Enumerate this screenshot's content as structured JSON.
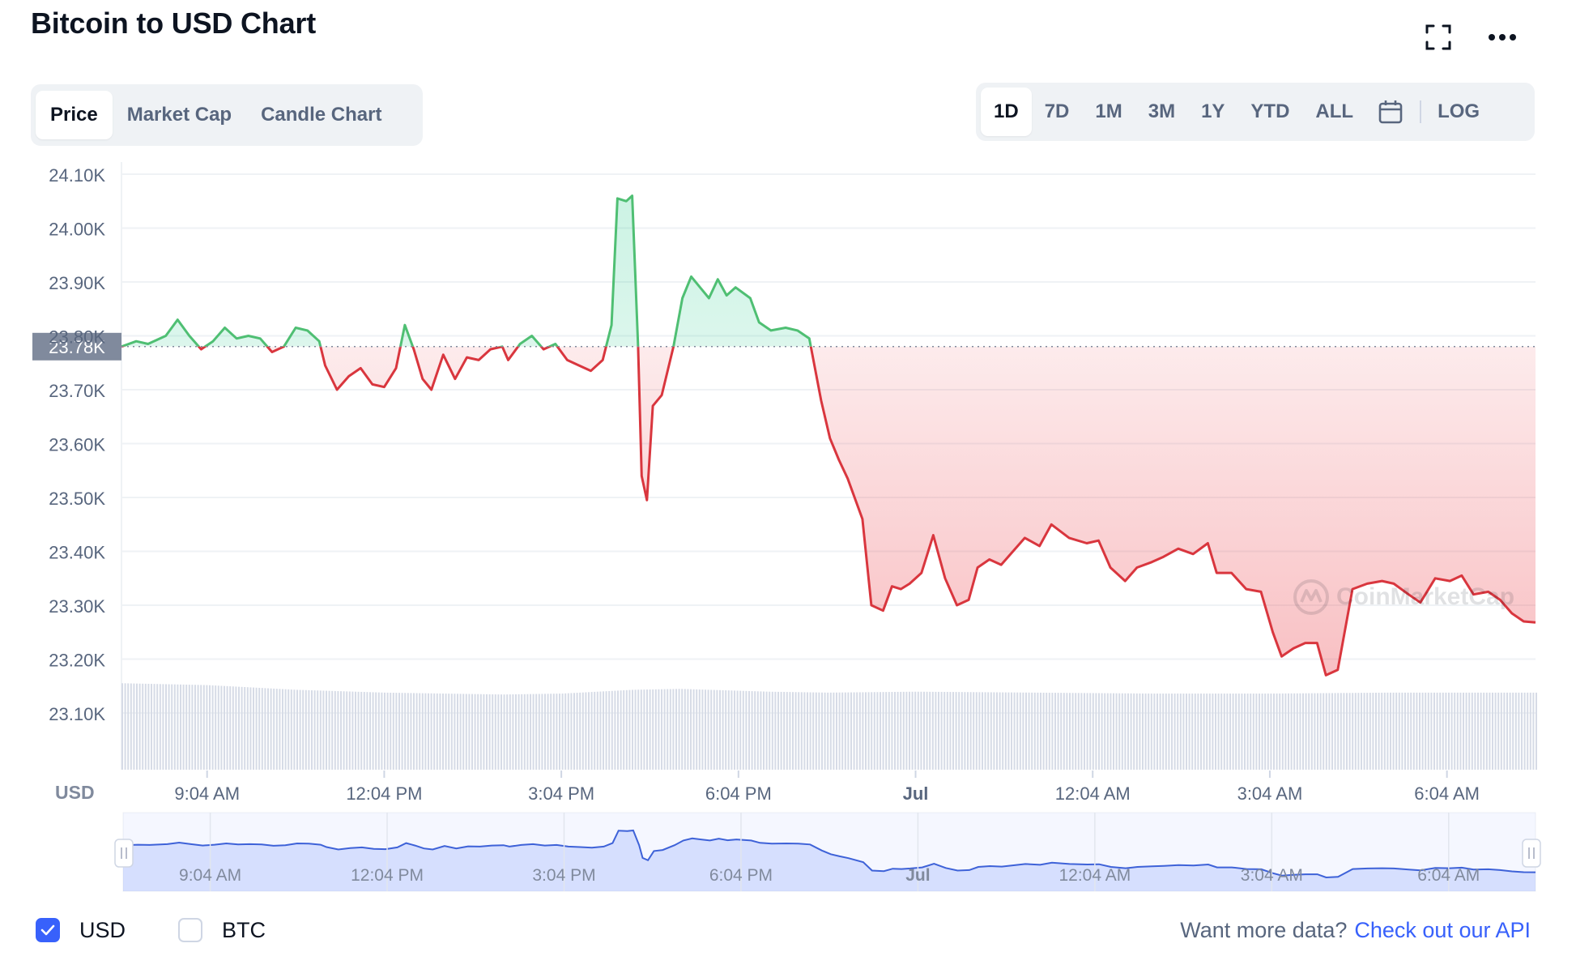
{
  "header": {
    "title": "Bitcoin to USD Chart",
    "fullscreen_icon": "fullscreen-icon",
    "more_icon": "more-horizontal-icon"
  },
  "view_tabs": [
    {
      "label": "Price",
      "active": true
    },
    {
      "label": "Market Cap",
      "active": false
    },
    {
      "label": "Candle Chart",
      "active": false
    }
  ],
  "range_tabs": [
    {
      "label": "1D",
      "active": true
    },
    {
      "label": "7D",
      "active": false
    },
    {
      "label": "1M",
      "active": false
    },
    {
      "label": "3M",
      "active": false
    },
    {
      "label": "1Y",
      "active": false
    },
    {
      "label": "YTD",
      "active": false
    },
    {
      "label": "ALL",
      "active": false
    }
  ],
  "calendar_icon": "calendar-icon",
  "log_label": "LOG",
  "colors": {
    "up": "#16c784",
    "up_line": "#4fbf73",
    "down": "#ea3943",
    "down_line": "#d9363e",
    "accent": "#3861fb",
    "nav_line": "#3e62d8",
    "volume": "#d6dbe6"
  },
  "chart_data": {
    "type": "line",
    "title": "Bitcoin to USD Chart",
    "ylabel": "USD",
    "ylim": [
      23.05,
      24.12
    ],
    "y_ticks": [
      "24.10K",
      "24.00K",
      "23.90K",
      "23.80K",
      "23.70K",
      "23.60K",
      "23.50K",
      "23.40K",
      "23.30K",
      "23.20K",
      "23.10K"
    ],
    "y_tick_values": [
      24.1,
      24.0,
      23.9,
      23.8,
      23.7,
      23.6,
      23.5,
      23.4,
      23.3,
      23.2,
      23.1
    ],
    "reference_price": 23.78,
    "reference_label": "23.78K",
    "x_ticks": [
      {
        "label": "9:04 AM",
        "t": 3.0
      },
      {
        "label": "12:04 PM",
        "t": 6.0
      },
      {
        "label": "3:04 PM",
        "t": 9.0
      },
      {
        "label": "6:04 PM",
        "t": 12.0
      },
      {
        "label": "Jul",
        "t": 15.0,
        "bold": true
      },
      {
        "label": "12:04 AM",
        "t": 18.0
      },
      {
        "label": "3:04 AM",
        "t": 21.0
      },
      {
        "label": "6:04 AM",
        "t": 24.0
      }
    ],
    "x_range_hours": [
      1.55,
      25.5
    ],
    "series": [
      {
        "name": "Price",
        "points": [
          [
            1.55,
            23.78
          ],
          [
            1.8,
            23.79
          ],
          [
            2.0,
            23.785
          ],
          [
            2.3,
            23.8
          ],
          [
            2.5,
            23.83
          ],
          [
            2.7,
            23.8
          ],
          [
            2.9,
            23.775
          ],
          [
            3.1,
            23.79
          ],
          [
            3.3,
            23.815
          ],
          [
            3.5,
            23.795
          ],
          [
            3.7,
            23.8
          ],
          [
            3.9,
            23.795
          ],
          [
            4.1,
            23.77
          ],
          [
            4.3,
            23.78
          ],
          [
            4.5,
            23.815
          ],
          [
            4.7,
            23.81
          ],
          [
            4.9,
            23.79
          ],
          [
            5.0,
            23.745
          ],
          [
            5.2,
            23.7
          ],
          [
            5.4,
            23.725
          ],
          [
            5.6,
            23.74
          ],
          [
            5.8,
            23.71
          ],
          [
            6.0,
            23.705
          ],
          [
            6.2,
            23.74
          ],
          [
            6.35,
            23.82
          ],
          [
            6.5,
            23.775
          ],
          [
            6.65,
            23.72
          ],
          [
            6.8,
            23.7
          ],
          [
            7.0,
            23.765
          ],
          [
            7.2,
            23.72
          ],
          [
            7.4,
            23.76
          ],
          [
            7.6,
            23.755
          ],
          [
            7.8,
            23.775
          ],
          [
            8.0,
            23.78
          ],
          [
            8.1,
            23.755
          ],
          [
            8.3,
            23.785
          ],
          [
            8.5,
            23.8
          ],
          [
            8.7,
            23.775
          ],
          [
            8.9,
            23.785
          ],
          [
            9.1,
            23.755
          ],
          [
            9.3,
            23.745
          ],
          [
            9.5,
            23.735
          ],
          [
            9.7,
            23.755
          ],
          [
            9.85,
            23.82
          ],
          [
            9.95,
            24.055
          ],
          [
            10.1,
            24.05
          ],
          [
            10.2,
            24.06
          ],
          [
            10.3,
            23.78
          ],
          [
            10.36,
            23.54
          ],
          [
            10.45,
            23.495
          ],
          [
            10.55,
            23.67
          ],
          [
            10.7,
            23.69
          ],
          [
            10.9,
            23.78
          ],
          [
            11.05,
            23.87
          ],
          [
            11.2,
            23.91
          ],
          [
            11.35,
            23.89
          ],
          [
            11.5,
            23.87
          ],
          [
            11.65,
            23.905
          ],
          [
            11.8,
            23.875
          ],
          [
            11.95,
            23.89
          ],
          [
            12.2,
            23.87
          ],
          [
            12.35,
            23.825
          ],
          [
            12.55,
            23.81
          ],
          [
            12.8,
            23.815
          ],
          [
            13.0,
            23.81
          ],
          [
            13.2,
            23.795
          ],
          [
            13.4,
            23.68
          ],
          [
            13.55,
            23.61
          ],
          [
            13.7,
            23.57
          ],
          [
            13.85,
            23.535
          ],
          [
            14.1,
            23.46
          ],
          [
            14.25,
            23.3
          ],
          [
            14.45,
            23.29
          ],
          [
            14.6,
            23.335
          ],
          [
            14.75,
            23.33
          ],
          [
            14.9,
            23.34
          ],
          [
            15.1,
            23.36
          ],
          [
            15.3,
            23.43
          ],
          [
            15.5,
            23.35
          ],
          [
            15.7,
            23.3
          ],
          [
            15.9,
            23.31
          ],
          [
            16.05,
            23.37
          ],
          [
            16.25,
            23.385
          ],
          [
            16.45,
            23.375
          ],
          [
            16.65,
            23.4
          ],
          [
            16.85,
            23.425
          ],
          [
            17.1,
            23.41
          ],
          [
            17.3,
            23.45
          ],
          [
            17.6,
            23.425
          ],
          [
            17.9,
            23.415
          ],
          [
            18.1,
            23.42
          ],
          [
            18.3,
            23.37
          ],
          [
            18.55,
            23.345
          ],
          [
            18.75,
            23.37
          ],
          [
            19.0,
            23.38
          ],
          [
            19.2,
            23.39
          ],
          [
            19.45,
            23.405
          ],
          [
            19.7,
            23.395
          ],
          [
            19.95,
            23.415
          ],
          [
            20.1,
            23.36
          ],
          [
            20.35,
            23.36
          ],
          [
            20.6,
            23.33
          ],
          [
            20.85,
            23.325
          ],
          [
            21.05,
            23.25
          ],
          [
            21.2,
            23.205
          ],
          [
            21.4,
            23.22
          ],
          [
            21.6,
            23.23
          ],
          [
            21.8,
            23.23
          ],
          [
            21.95,
            23.17
          ],
          [
            22.15,
            23.18
          ],
          [
            22.4,
            23.33
          ],
          [
            22.65,
            23.34
          ],
          [
            22.9,
            23.345
          ],
          [
            23.1,
            23.34
          ],
          [
            23.35,
            23.32
          ],
          [
            23.55,
            23.305
          ],
          [
            23.8,
            23.35
          ],
          [
            24.05,
            23.345
          ],
          [
            24.25,
            23.355
          ],
          [
            24.45,
            23.32
          ],
          [
            24.7,
            23.325
          ],
          [
            24.9,
            23.31
          ],
          [
            25.1,
            23.285
          ],
          [
            25.3,
            23.27
          ],
          [
            25.5,
            23.268
          ]
        ]
      },
      {
        "name": "Volume",
        "levels": [
          [
            1.55,
            0.92
          ],
          [
            3.0,
            0.9
          ],
          [
            4.5,
            0.85
          ],
          [
            6.0,
            0.82
          ],
          [
            8.0,
            0.8
          ],
          [
            9.0,
            0.81
          ],
          [
            10.2,
            0.85
          ],
          [
            11.0,
            0.86
          ],
          [
            12.5,
            0.83
          ],
          [
            13.5,
            0.82
          ],
          [
            15.0,
            0.83
          ],
          [
            17.0,
            0.82
          ],
          [
            19.0,
            0.81
          ],
          [
            21.0,
            0.81
          ],
          [
            23.0,
            0.82
          ],
          [
            25.5,
            0.82
          ]
        ]
      }
    ],
    "navigator": {
      "x_ticks": [
        "9:04 AM",
        "12:04 PM",
        "3:04 PM",
        "6:04 PM",
        "Jul",
        "12:04 AM",
        "3:04 AM",
        "6:04 AM"
      ]
    },
    "grid": true
  },
  "watermark": "CoinMarketCap",
  "footer": {
    "usd_label": "USD",
    "usd_checked": true,
    "btc_label": "BTC",
    "btc_checked": false,
    "more_data_text": "Want more data?",
    "api_link": "Check out our API"
  }
}
